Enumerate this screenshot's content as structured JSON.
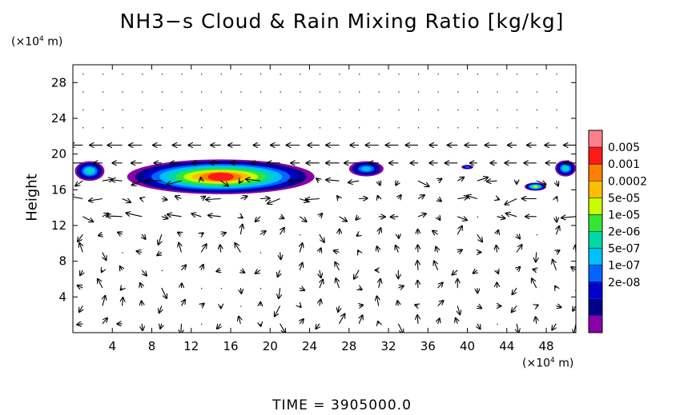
{
  "title": "NH3−s Cloud & Rain Mixing Ratio [kg/kg]",
  "y_unit": "(×10",
  "x_unit": "(×10",
  "unit_exponent": "4",
  "unit_suffix": " m)",
  "time_label": "TIME  =  3905000.0",
  "chart_data": {
    "type": "heatmap",
    "title": "NH3−s Cloud & Rain Mixing Ratio [kg/kg]",
    "xlabel": "",
    "ylabel": "Height",
    "x_unit": "(×10⁴ m)",
    "y_unit": "(×10⁴ m)",
    "xlim": [
      0,
      51
    ],
    "ylim": [
      0,
      30
    ],
    "x_ticks": [
      4,
      8,
      12,
      16,
      20,
      24,
      28,
      32,
      36,
      40,
      44,
      48
    ],
    "y_ticks": [
      4,
      8,
      12,
      16,
      20,
      24,
      28
    ],
    "colorbar": {
      "labels": [
        "0.005",
        "0.001",
        "0.0002",
        "5e-05",
        "1e-05",
        "2e-06",
        "5e-07",
        "1e-07",
        "2e-08"
      ],
      "colors": [
        "#ff7f8c",
        "#ff1a1a",
        "#ff7f00",
        "#ffbf00",
        "#c8ff00",
        "#33e633",
        "#00d9a6",
        "#00bfff",
        "#0066ff",
        "#0000cc",
        "#00008b",
        "#8b00a8"
      ]
    },
    "cloud_regions": [
      {
        "x_range": [
          0.2,
          3.2
        ],
        "y_range": [
          17.0,
          19.2
        ],
        "max_level": "5e-07"
      },
      {
        "x_range": [
          5.5,
          24.5
        ],
        "y_range": [
          15.5,
          19.4
        ],
        "max_level": "0.001"
      },
      {
        "x_range": [
          28.0,
          31.5
        ],
        "y_range": [
          17.5,
          19.2
        ],
        "max_level": "1e-07"
      },
      {
        "x_range": [
          39.4,
          40.6
        ],
        "y_range": [
          18.3,
          18.8
        ],
        "max_level": "2e-08"
      },
      {
        "x_range": [
          45.8,
          48.0
        ],
        "y_range": [
          15.9,
          16.8
        ],
        "max_level": "1e-05"
      },
      {
        "x_range": [
          48.9,
          51.0
        ],
        "y_range": [
          17.5,
          19.3
        ],
        "max_level": "5e-07"
      }
    ],
    "grid": false
  }
}
